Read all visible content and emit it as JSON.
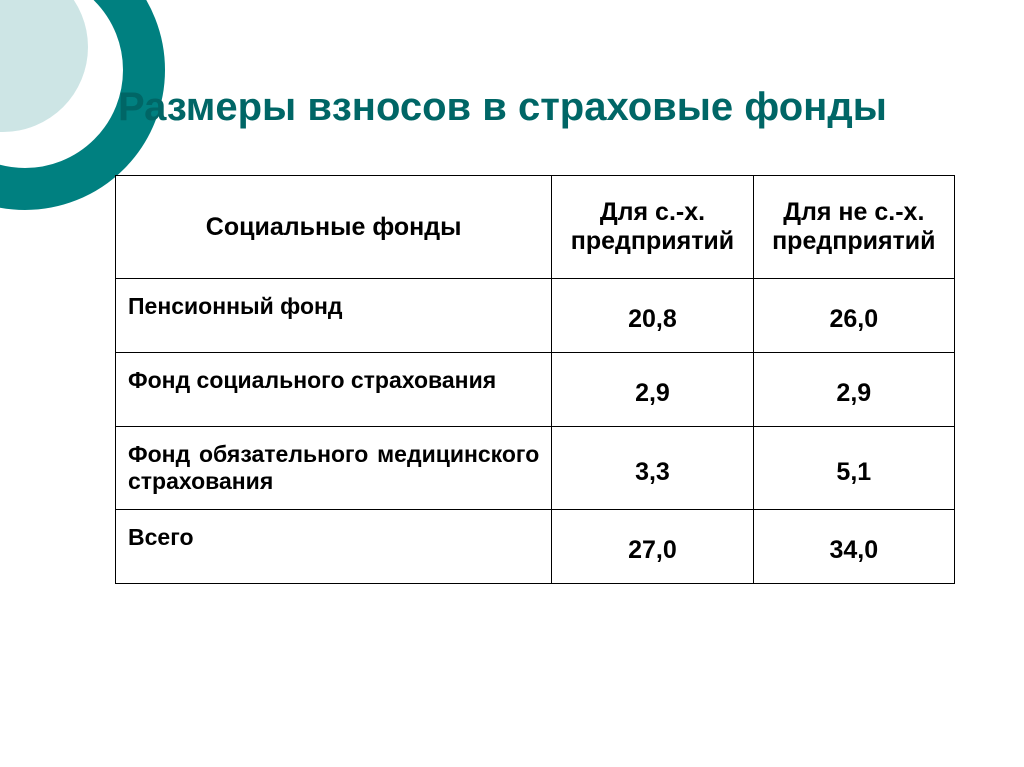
{
  "title": "Размеры взносов в страховые фонды",
  "colors": {
    "title_color": "#006666",
    "ring_color": "#008080",
    "inner_disc_color": "#cde5e5",
    "background": "#ffffff",
    "text": "#000000",
    "border": "#000000"
  },
  "table": {
    "type": "table",
    "columns": [
      "Социальные фонды",
      "Для с.-х. предприятий",
      "Для не с.-х. предприятий"
    ],
    "rows": [
      {
        "label": "Пенсионный фонд",
        "v1": "20,8",
        "v2": "26,0"
      },
      {
        "label": "Фонд социального страхования",
        "v1": "2,9",
        "v2": "2,9"
      },
      {
        "label": "Фонд обязательного медицинского страхования",
        "v1": "3,3",
        "v2": "5,1",
        "justify": true
      },
      {
        "label": "Всего",
        "v1": "27,0",
        "v2": "34,0"
      }
    ],
    "col_widths_pct": [
      52,
      24,
      24
    ],
    "header_fontsize": 25,
    "cell_fontsize": 23,
    "value_fontsize": 25,
    "font_weight": "bold"
  }
}
